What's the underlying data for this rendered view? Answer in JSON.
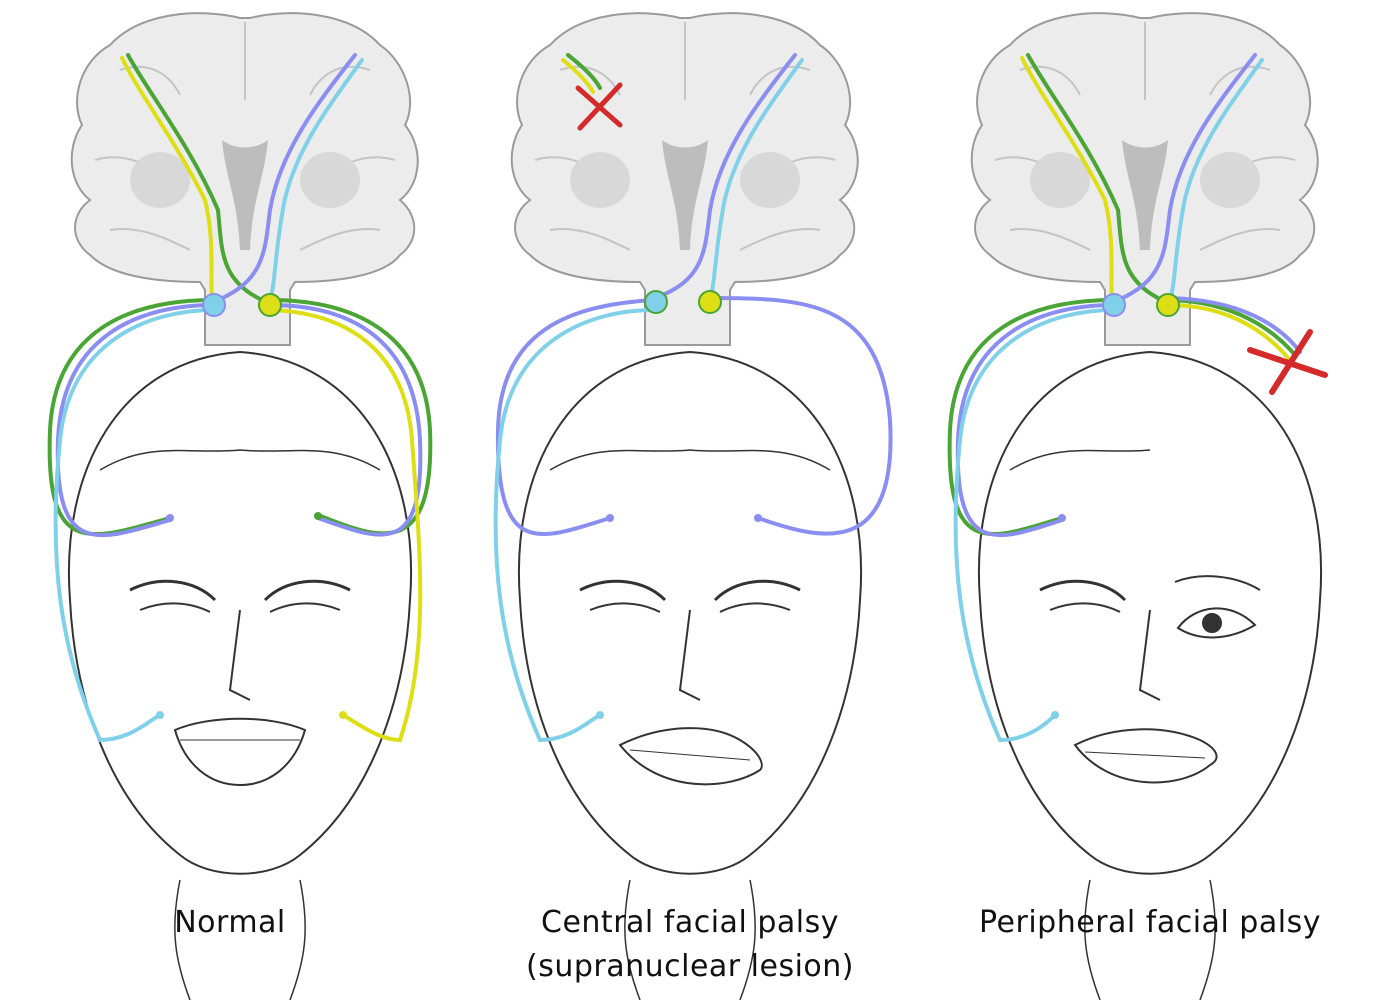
{
  "figure": {
    "panels": [
      {
        "id": "normal",
        "caption": "Normal",
        "caption_line2": "",
        "lesion": "none"
      },
      {
        "id": "central",
        "caption": "Central facial palsy",
        "caption_line2": "(supranuclear lesion)",
        "lesion": "supranuclear"
      },
      {
        "id": "peripheral",
        "caption": "Peripheral facial palsy",
        "caption_line2": "",
        "lesion": "peripheral-nerve"
      }
    ]
  },
  "colors": {
    "green": "#4aa534",
    "yellow": "#dede16",
    "blue": "#8a8ef0",
    "lightblue": "#7fd0e8",
    "lesion": "#d42a2a",
    "brain_fill": "#ececec",
    "brain_outline": "#9a9a9a",
    "ventricle": "#bdbdbd",
    "sketch": "#333333"
  },
  "icons": [
    "brain-icon",
    "face-icon",
    "lesion-cross-icon",
    "nucleus-icon"
  ]
}
